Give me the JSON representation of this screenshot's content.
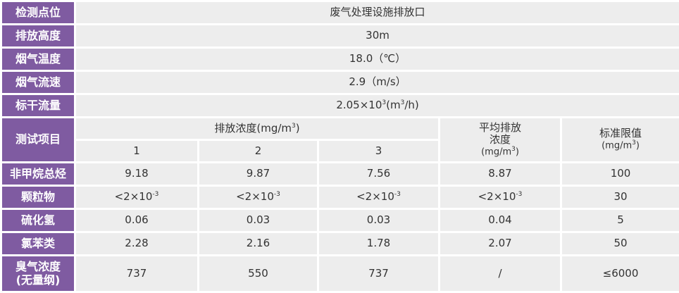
{
  "info_rows": [
    {
      "label": "检测点位",
      "value": "废气处理设施排放口"
    },
    {
      "label": "排放高度",
      "value": "30m"
    },
    {
      "label": "烟气温度",
      "value": "18.0（℃）"
    },
    {
      "label": "烟气流速",
      "value": "2.9（m/s）"
    },
    {
      "label": "标干流量",
      "value_prefix": "2.05×10",
      "value_exp": "3",
      "value_mid": "(m",
      "value_exp2": "3",
      "value_suffix": "/h)"
    }
  ],
  "header": {
    "item_label": "测试项目",
    "conc_label": "排放浓度(mg/m",
    "conc_exp": "3",
    "conc_close": ")",
    "samples": [
      "1",
      "2",
      "3"
    ],
    "avg_label": "平均排放",
    "avg_label2": "浓度",
    "avg_unit": "(mg/m",
    "avg_unit_exp": "3",
    "avg_unit_close": ")",
    "limit_label": "标准限值",
    "limit_unit": "(mg/m",
    "limit_unit_exp": "3",
    "limit_unit_close": ")"
  },
  "rows": [
    {
      "label": "非甲烷总烃",
      "values": [
        "9.18",
        "9.87",
        "7.56",
        "8.87",
        "100"
      ]
    },
    {
      "label": "颗粒物",
      "values": [
        "<2×10",
        "<2×10",
        "<2×10",
        "<2×10",
        "30"
      ],
      "exp": "-3"
    },
    {
      "label": "硫化氢",
      "values": [
        "0.06",
        "0.03",
        "0.03",
        "0.04",
        "5"
      ]
    },
    {
      "label": "氯苯类",
      "values": [
        "2.28",
        "2.16",
        "1.78",
        "2.07",
        "50"
      ]
    },
    {
      "label": "臭气浓度",
      "label2": "(无量纲)",
      "values": [
        "737",
        "550",
        "737",
        "/",
        "≤6000"
      ]
    }
  ],
  "colors": {
    "label_bg": "#7f5ba1",
    "cell_bg": "#ededed"
  }
}
